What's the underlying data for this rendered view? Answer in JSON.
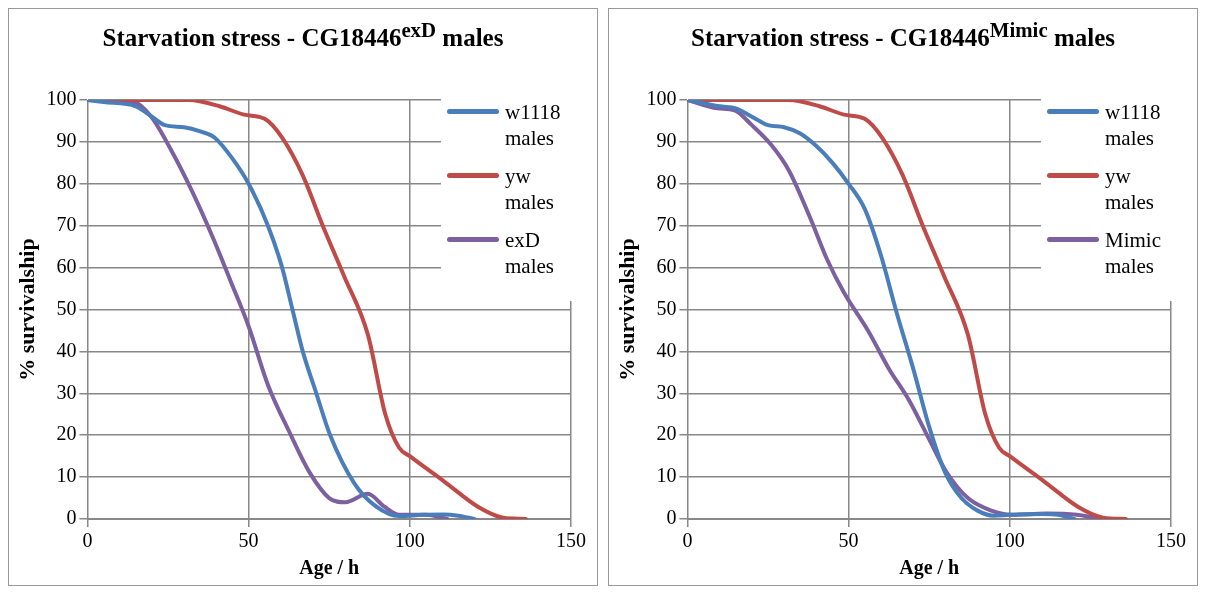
{
  "chart_data": [
    {
      "type": "line",
      "title": "Starvation stress - CG18446$^{exD}$ males",
      "xlabel": "Age / h",
      "ylabel": "% survivalship",
      "xlim": [
        0,
        150
      ],
      "xticks": [
        0,
        50,
        100,
        150
      ],
      "ylim": [
        0,
        100
      ],
      "yticks": [
        0,
        10,
        20,
        30,
        40,
        50,
        60,
        70,
        80,
        90,
        100
      ],
      "grid": true,
      "legend": "top right",
      "marker": "none",
      "series": [
        {
          "name": "w1118 males",
          "color": "#4a7ebb",
          "x": [
            0,
            5,
            15,
            20,
            24,
            30,
            35,
            39.5,
            45,
            50,
            56,
            60.4,
            63.6,
            66.8,
            71,
            75.3,
            82.8,
            89,
            96.7,
            104,
            110.6,
            115,
            120
          ],
          "values": [
            100,
            99.5,
            98.5,
            96,
            94,
            93.5,
            92.5,
            91,
            86,
            80,
            70,
            60,
            50,
            40,
            30,
            20,
            8.5,
            3.3,
            0.7,
            1,
            1.1,
            0.8,
            0
          ]
        },
        {
          "name": "yw males",
          "color": "#be4b48",
          "x": [
            0,
            10,
            20,
            31.5,
            41,
            48.6,
            55,
            60.4,
            66.8,
            73,
            79.6,
            87,
            92.4,
            96.7,
            100,
            110.6,
            121,
            129,
            136
          ],
          "values": [
            100,
            100,
            100,
            100,
            98.5,
            96.5,
            95.5,
            91,
            82,
            70,
            58,
            44,
            25,
            17,
            15,
            9,
            3,
            0.3,
            0
          ]
        },
        {
          "name": "exD males",
          "color": "#7d60a0",
          "x": [
            0,
            14.4,
            19.8,
            26,
            32.6,
            39,
            44.3,
            50,
            56,
            62.5,
            69,
            75,
            80,
            87,
            92,
            96.7,
            105,
            111.6
          ],
          "values": [
            100,
            99.5,
            96,
            88,
            78,
            67,
            57,
            46,
            32,
            21,
            11,
            5,
            4,
            6,
            3,
            1,
            1,
            0
          ]
        }
      ]
    },
    {
      "type": "line",
      "title": "Starvation stress - CG18446$^{Mimic}$ males",
      "xlabel": "Age / h",
      "ylabel": "% survivalship",
      "xlim": [
        0,
        150
      ],
      "xticks": [
        0,
        50,
        100,
        150
      ],
      "ylim": [
        0,
        100
      ],
      "yticks": [
        0,
        10,
        20,
        30,
        40,
        50,
        60,
        70,
        80,
        90,
        100
      ],
      "grid": true,
      "legend": "top right",
      "marker": "none",
      "series": [
        {
          "name": "w1118 males",
          "color": "#4a7ebb",
          "x": [
            0,
            10,
            15,
            20,
            25,
            30,
            35,
            40,
            45,
            50,
            55,
            60,
            65,
            70,
            75,
            80,
            85,
            90,
            95,
            100,
            110,
            115,
            120
          ],
          "values": [
            100,
            98.5,
            98,
            96,
            94,
            93.5,
            92,
            89,
            85,
            80,
            74,
            63,
            49,
            36,
            22,
            11,
            5,
            2,
            0.8,
            1,
            1.2,
            1,
            0
          ]
        },
        {
          "name": "yw males",
          "color": "#be4b48",
          "x": [
            0,
            10,
            20,
            31.5,
            41,
            48.6,
            55,
            60.4,
            66.8,
            73,
            79.6,
            87,
            92.4,
            96.7,
            100,
            110.6,
            121,
            129,
            136
          ],
          "values": [
            100,
            100,
            100,
            100,
            98.5,
            96.5,
            95.5,
            91,
            82,
            70,
            58,
            44,
            25,
            17,
            15,
            9,
            3,
            0.3,
            0
          ]
        },
        {
          "name": "Mimic males",
          "color": "#7d60a0",
          "x": [
            0,
            9.3,
            14.6,
            20,
            26.3,
            31.6,
            38,
            43.3,
            48.6,
            56,
            62.4,
            69,
            75,
            80.5,
            87,
            94.3,
            100.6,
            111.3,
            120.8,
            128.2
          ],
          "values": [
            100,
            98,
            97.5,
            94,
            89,
            83,
            72,
            62,
            54,
            45,
            36,
            28,
            19,
            11,
            5,
            2,
            1,
            1.3,
            1,
            0
          ]
        }
      ]
    }
  ]
}
